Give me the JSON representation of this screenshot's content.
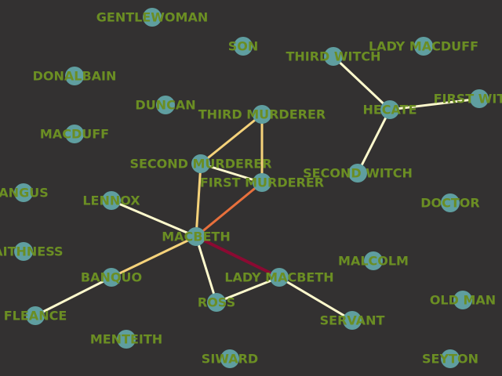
{
  "colors": {
    "background": "#333131",
    "node_fill": "#5f9ea0",
    "label": "#6b8e23",
    "edge_weak": "#fffacd",
    "edge_mid": "#f5d27a",
    "edge_orange": "#e8703c",
    "edge_strong": "#8b0a32"
  },
  "nodes": [
    {
      "id": "gentlewoman",
      "label": "GENTLEWOMAN"
    },
    {
      "id": "son",
      "label": "SON"
    },
    {
      "id": "third-witch",
      "label": "THIRD WITCH"
    },
    {
      "id": "lady-macduff",
      "label": "LADY MACDUFF"
    },
    {
      "id": "donalbain",
      "label": "DONALBAIN"
    },
    {
      "id": "duncan",
      "label": "DUNCAN"
    },
    {
      "id": "third-murderer",
      "label": "THIRD MURDERER"
    },
    {
      "id": "hecate",
      "label": "HECATE"
    },
    {
      "id": "first-witch",
      "label": "FIRST WITCH"
    },
    {
      "id": "macduff",
      "label": "MACDUFF"
    },
    {
      "id": "second-murderer",
      "label": "SECOND MURDERER"
    },
    {
      "id": "first-murderer",
      "label": "FIRST MURDERER"
    },
    {
      "id": "second-witch",
      "label": "SECOND WITCH"
    },
    {
      "id": "angus",
      "label": "ANGUS"
    },
    {
      "id": "lennox",
      "label": "LENNOX"
    },
    {
      "id": "doctor",
      "label": "DOCTOR"
    },
    {
      "id": "macbeth",
      "label": "MACBETH"
    },
    {
      "id": "caithness",
      "label": "CAITHNESS"
    },
    {
      "id": "malcolm",
      "label": "MALCOLM"
    },
    {
      "id": "banquo",
      "label": "BANQUO"
    },
    {
      "id": "lady-macbeth",
      "label": "LADY MACBETH"
    },
    {
      "id": "ross",
      "label": "ROSS"
    },
    {
      "id": "old-man",
      "label": "OLD MAN"
    },
    {
      "id": "fleance",
      "label": "FLEANCE"
    },
    {
      "id": "servant",
      "label": "SERVANT"
    },
    {
      "id": "menteith",
      "label": "MENTEITH"
    },
    {
      "id": "siward",
      "label": "SIWARD"
    },
    {
      "id": "seyton",
      "label": "SEYTON"
    }
  ],
  "edges": [
    {
      "source": "third-witch",
      "target": "hecate",
      "strength": "weak"
    },
    {
      "source": "hecate",
      "target": "first-witch",
      "strength": "weak"
    },
    {
      "source": "hecate",
      "target": "second-witch",
      "strength": "weak"
    },
    {
      "source": "third-murderer",
      "target": "second-murderer",
      "strength": "mid"
    },
    {
      "source": "third-murderer",
      "target": "first-murderer",
      "strength": "mid"
    },
    {
      "source": "second-murderer",
      "target": "first-murderer",
      "strength": "weak"
    },
    {
      "source": "second-murderer",
      "target": "macbeth",
      "strength": "mid"
    },
    {
      "source": "first-murderer",
      "target": "macbeth",
      "strength": "orange"
    },
    {
      "source": "lennox",
      "target": "macbeth",
      "strength": "weak"
    },
    {
      "source": "macbeth",
      "target": "banquo",
      "strength": "mid"
    },
    {
      "source": "macbeth",
      "target": "lady-macbeth",
      "strength": "strong"
    },
    {
      "source": "macbeth",
      "target": "ross",
      "strength": "weak"
    },
    {
      "source": "banquo",
      "target": "fleance",
      "strength": "weak"
    },
    {
      "source": "lady-macbeth",
      "target": "ross",
      "strength": "weak"
    },
    {
      "source": "lady-macbeth",
      "target": "servant",
      "strength": "weak"
    }
  ]
}
